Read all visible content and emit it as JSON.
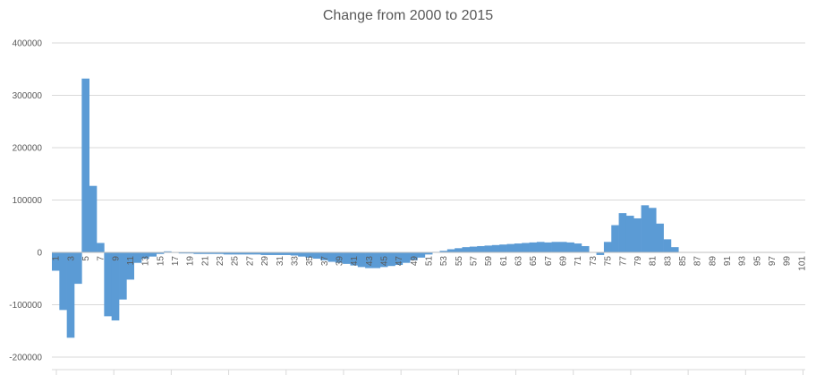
{
  "chart_data": {
    "type": "bar",
    "title": "Change from 2000 to 2015",
    "xlabel": "",
    "ylabel": "",
    "ylim": [
      -200000,
      400000
    ],
    "yticks": [
      -200000,
      -100000,
      0,
      100000,
      200000,
      300000,
      400000
    ],
    "ytick_labels": [
      "-200000",
      "-100000",
      "0",
      "100000",
      "200000",
      "300000",
      "400000"
    ],
    "xtick_labels_every": 2,
    "grid": true,
    "legend": "none",
    "color": "#5b9bd5",
    "categories": [
      1,
      2,
      3,
      4,
      5,
      6,
      7,
      8,
      9,
      10,
      11,
      12,
      13,
      14,
      15,
      16,
      17,
      18,
      19,
      20,
      21,
      22,
      23,
      24,
      25,
      26,
      27,
      28,
      29,
      30,
      31,
      32,
      33,
      34,
      35,
      36,
      37,
      38,
      39,
      40,
      41,
      42,
      43,
      44,
      45,
      46,
      47,
      48,
      49,
      50,
      51,
      52,
      53,
      54,
      55,
      56,
      57,
      58,
      59,
      60,
      61,
      62,
      63,
      64,
      65,
      66,
      67,
      68,
      69,
      70,
      71,
      72,
      73,
      74,
      75,
      76,
      77,
      78,
      79,
      80,
      81,
      82,
      83,
      84,
      85,
      86,
      87,
      88,
      89,
      90,
      91,
      92,
      93,
      94,
      95,
      96,
      97,
      98,
      99,
      100,
      101
    ],
    "values": [
      -35000,
      -110000,
      -163000,
      -60000,
      332000,
      127000,
      18000,
      -122000,
      -130000,
      -90000,
      -52000,
      -20000,
      -12000,
      -8000,
      -3000,
      2000,
      -1000,
      -2000,
      -2000,
      -3000,
      -3000,
      -3000,
      -3000,
      -4000,
      -4000,
      -4000,
      -4000,
      -4000,
      -5000,
      -5000,
      -5000,
      -5000,
      -6000,
      -8000,
      -10000,
      -12000,
      -15000,
      -18000,
      -20000,
      -22000,
      -25000,
      -28000,
      -30000,
      -30000,
      -28000,
      -26000,
      -24000,
      -20000,
      -15000,
      -10000,
      -4000,
      1000,
      3000,
      6000,
      8000,
      10000,
      11000,
      12000,
      13000,
      14000,
      15000,
      16000,
      17000,
      18000,
      19000,
      20000,
      19000,
      20000,
      20000,
      19000,
      17000,
      12000,
      0,
      -5000,
      20000,
      52000,
      75000,
      70000,
      65000,
      90000,
      85000,
      55000,
      25000,
      10000,
      0,
      0,
      0,
      0,
      0,
      0,
      0,
      0,
      0,
      0,
      0,
      0,
      0,
      0,
      0,
      0,
      0
    ]
  }
}
